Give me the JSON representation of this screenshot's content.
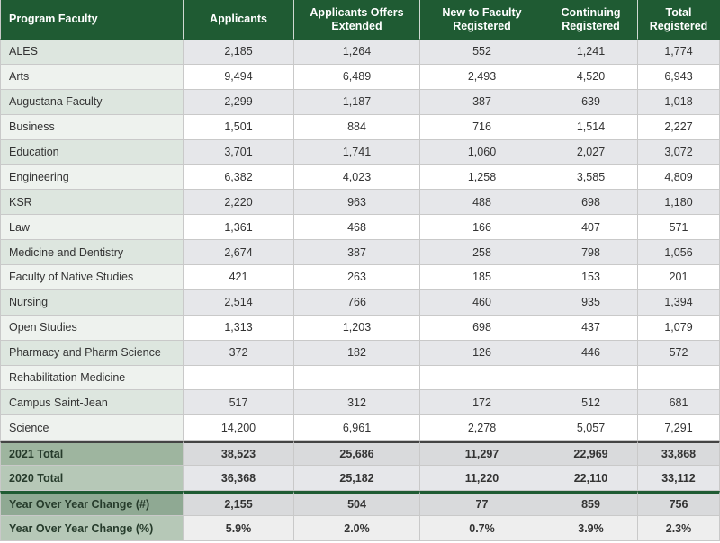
{
  "headers": [
    "Program Faculty",
    "Applicants",
    "Applicants Offers Extended",
    "New to Faculty Registered",
    "Continuing Registered",
    "Total Registered"
  ],
  "rows": [
    [
      "ALES",
      "2,185",
      "1,264",
      "552",
      "1,241",
      "1,774"
    ],
    [
      "Arts",
      "9,494",
      "6,489",
      "2,493",
      "4,520",
      "6,943"
    ],
    [
      "Augustana Faculty",
      "2,299",
      "1,187",
      "387",
      "639",
      "1,018"
    ],
    [
      "Business",
      "1,501",
      "884",
      "716",
      "1,514",
      "2,227"
    ],
    [
      "Education",
      "3,701",
      "1,741",
      "1,060",
      "2,027",
      "3,072"
    ],
    [
      "Engineering",
      "6,382",
      "4,023",
      "1,258",
      "3,585",
      "4,809"
    ],
    [
      "KSR",
      "2,220",
      "963",
      "488",
      "698",
      "1,180"
    ],
    [
      "Law",
      "1,361",
      "468",
      "166",
      "407",
      "571"
    ],
    [
      "Medicine and Dentistry",
      "2,674",
      "387",
      "258",
      "798",
      "1,056"
    ],
    [
      "Faculty of Native Studies",
      "421",
      "263",
      "185",
      "153",
      "201"
    ],
    [
      "Nursing",
      "2,514",
      "766",
      "460",
      "935",
      "1,394"
    ],
    [
      "Open Studies",
      "1,313",
      "1,203",
      "698",
      "437",
      "1,079"
    ],
    [
      "Pharmacy and Pharm Science",
      "372",
      "182",
      "126",
      "446",
      "572"
    ],
    [
      "Rehabilitation Medicine",
      "-",
      "-",
      "-",
      "-",
      "-"
    ],
    [
      "Campus Saint-Jean",
      "517",
      "312",
      "172",
      "512",
      "681"
    ],
    [
      "Science",
      "14,200",
      "6,961",
      "2,278",
      "5,057",
      "7,291"
    ]
  ],
  "totals": [
    [
      "2021 Total",
      "38,523",
      "25,686",
      "11,297",
      "22,969",
      "33,868"
    ],
    [
      "2020 Total",
      "36,368",
      "25,182",
      "11,220",
      "22,110",
      "33,112"
    ]
  ],
  "changes": [
    [
      "Year Over Year Change (#)",
      "2,155",
      "504",
      "77",
      "859",
      "756"
    ],
    [
      "Year Over Year Change (%)",
      "5.9%",
      "2.0%",
      "0.7%",
      "3.9%",
      "2.3%"
    ]
  ]
}
